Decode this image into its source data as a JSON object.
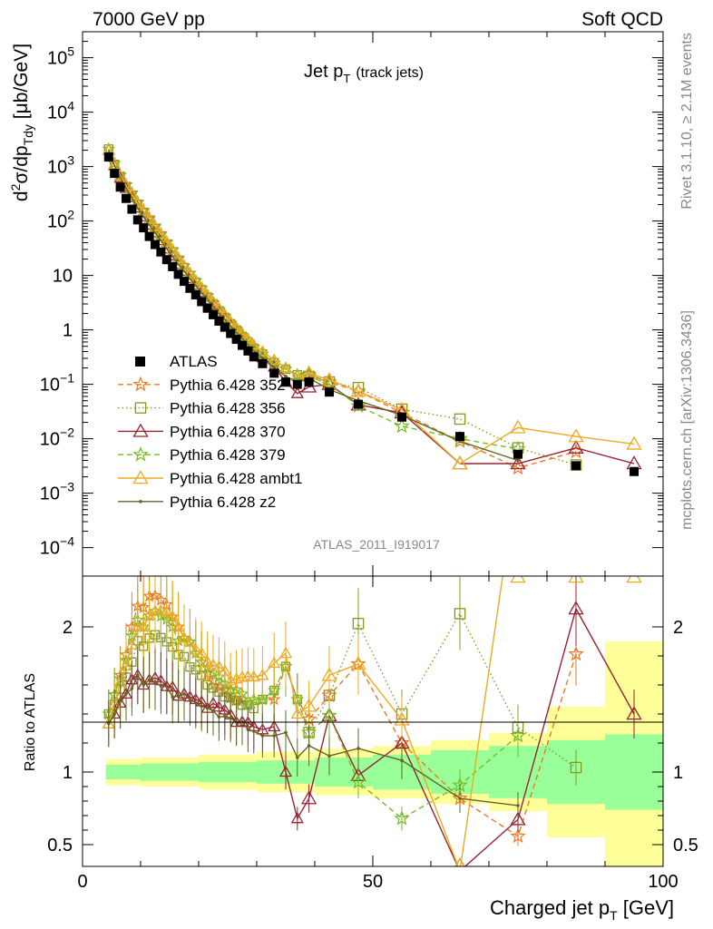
{
  "header": {
    "left": "7000 GeV pp",
    "right": "Soft QCD",
    "side_top": "Rivet 3.1.10, ≥ 2.1M events",
    "side_bottom": "mcplots.cern.ch [arXiv:1306.3436]",
    "analysis": "ATLAS_2011_I919017"
  },
  "chart_data": [
    {
      "type": "line",
      "title": "Jet p",
      "title_sub": "T",
      "title_suffix": "(track jets)",
      "ylabel": "d²σ/dp_Tdy [μb/GeV]",
      "ylabel_parts": {
        "pre": "d",
        "sup": "2",
        "mid": "σ/dp",
        "sub": "Tdy",
        "post": " [μb/GeV]"
      },
      "yscale": "log",
      "xlim": [
        0,
        100
      ],
      "ylim": [
        3e-05,
        300000.0
      ],
      "y_ticks": [
        {
          "v": 0.0001,
          "base": "10",
          "exp": "−4"
        },
        {
          "v": 0.001,
          "base": "10",
          "exp": "−3"
        },
        {
          "v": 0.01,
          "base": "10",
          "exp": "−2"
        },
        {
          "v": 0.1,
          "base": "10",
          "exp": "−1"
        },
        {
          "v": 1,
          "base": "1",
          "exp": ""
        },
        {
          "v": 10,
          "base": "10",
          "exp": ""
        },
        {
          "v": 100,
          "base": "10",
          "exp": "2"
        },
        {
          "v": 1000,
          "base": "10",
          "exp": "3"
        },
        {
          "v": 10000,
          "base": "10",
          "exp": "4"
        },
        {
          "v": 100000,
          "base": "10",
          "exp": "5"
        }
      ],
      "legend_position": "lower-left",
      "x": [
        4.5,
        5.5,
        6.5,
        7.5,
        8.5,
        9.5,
        10.5,
        11.5,
        12.5,
        13.5,
        14.5,
        15.5,
        16.5,
        17.5,
        18.5,
        19.5,
        20.5,
        21.5,
        22.5,
        23.5,
        24.5,
        25.5,
        26.5,
        27.5,
        28.5,
        29.5,
        31,
        33,
        35,
        37,
        39,
        42.5,
        47.5,
        55,
        65,
        75,
        85,
        95
      ],
      "data": {
        "name": "ATLAS",
        "values": [
          1500,
          750,
          420,
          260,
          165,
          105,
          75,
          52,
          37,
          27,
          19.5,
          14.5,
          10.5,
          7.8,
          5.8,
          4.4,
          3.3,
          2.5,
          1.9,
          1.45,
          1.12,
          0.86,
          0.67,
          0.52,
          0.41,
          0.32,
          0.24,
          0.16,
          0.11,
          0.1,
          0.11,
          0.072,
          0.043,
          0.025,
          0.011,
          0.0052,
          0.0032,
          0.0025
        ]
      },
      "series": [
        {
          "name": "Pythia 6.428 352",
          "color": "#ee7722",
          "dash": "6,4",
          "marker": "star",
          "values": [
            2100,
            1150,
            700,
            470,
            330,
            225,
            160,
            115,
            82,
            59,
            42,
            30,
            21,
            15,
            11,
            8,
            5.8,
            4.2,
            3.1,
            2.3,
            1.75,
            1.3,
            1.0,
            0.78,
            0.6,
            0.48,
            0.36,
            0.24,
            0.19,
            0.15,
            0.15,
            0.11,
            0.075,
            0.03,
            0.009,
            0.0029,
            0.0058,
            null
          ]
        },
        {
          "name": "Pythia 6.428 356",
          "color": "#889922",
          "dash": "1.5,3",
          "marker": "square",
          "values": [
            2100,
            1100,
            660,
            430,
            290,
            200,
            140,
            100,
            72,
            52,
            37,
            27,
            19,
            14,
            10,
            7.5,
            5.5,
            4.0,
            3.0,
            2.25,
            1.7,
            1.3,
            1.0,
            0.76,
            0.6,
            0.46,
            0.36,
            0.25,
            0.19,
            0.15,
            0.14,
            0.11,
            0.087,
            0.035,
            0.023,
            0.0068,
            0.0033,
            null
          ]
        },
        {
          "name": "Pythia 6.428 370",
          "color": "#992233",
          "dash": "",
          "marker": "triangle",
          "values": [
            2000,
            1050,
            620,
            400,
            270,
            175,
            120,
            85,
            61,
            44,
            31,
            23,
            16,
            12,
            8.8,
            6.6,
            4.9,
            3.6,
            2.8,
            2.1,
            1.6,
            1.2,
            0.9,
            0.7,
            0.55,
            0.42,
            0.31,
            0.21,
            0.11,
            0.068,
            0.09,
            0.1,
            0.042,
            0.03,
            0.0035,
            0.0035,
            0.0068,
            0.0035
          ]
        },
        {
          "name": "Pythia 6.428 379",
          "color": "#77bb22",
          "dash": "6,4",
          "marker": "star",
          "values": [
            2100,
            1150,
            690,
            460,
            320,
            215,
            150,
            108,
            78,
            56,
            40,
            29,
            20,
            15,
            11,
            8,
            5.8,
            4.3,
            3.2,
            2.4,
            1.8,
            1.35,
            1.05,
            0.8,
            0.6,
            0.48,
            0.36,
            0.25,
            0.19,
            0.15,
            0.14,
            0.1,
            0.04,
            0.017,
            0.01,
            0.0065,
            null,
            null
          ]
        },
        {
          "name": "Pythia 6.428 ambt1",
          "color": "#eeaa22",
          "dash": "",
          "marker": "triangle",
          "values": [
            2000,
            1100,
            680,
            450,
            310,
            210,
            150,
            108,
            78,
            57,
            41,
            30,
            21,
            15,
            11,
            8.1,
            6.0,
            4.4,
            3.3,
            2.5,
            1.9,
            1.4,
            1.1,
            0.86,
            0.68,
            0.53,
            0.4,
            0.28,
            0.2,
            0.14,
            0.16,
            0.12,
            0.075,
            0.034,
            0.0035,
            0.016,
            0.011,
            0.008
          ]
        },
        {
          "name": "Pythia 6.428 z2",
          "color": "#666622",
          "dash": "",
          "marker": "dot",
          "values": [
            2000,
            1050,
            630,
            400,
            260,
            175,
            120,
            85,
            60,
            43,
            31,
            22,
            16,
            12,
            8.7,
            6.5,
            4.8,
            3.6,
            2.7,
            2.0,
            1.55,
            1.18,
            0.9,
            0.7,
            0.53,
            0.41,
            0.3,
            0.2,
            0.14,
            0.11,
            0.13,
            0.08,
            0.05,
            0.027,
            0.009,
            0.004,
            null,
            null
          ]
        }
      ]
    },
    {
      "type": "line",
      "ylabel": "Ratio to ATLAS",
      "xlabel": "Charged jet p",
      "xlabel_sub": "T",
      "xlabel_suffix": " [GeV]",
      "xlim": [
        0,
        100
      ],
      "ylim": [
        0.35,
        2.35
      ],
      "x_ticks": [
        {
          "v": 0,
          "label": "0"
        },
        {
          "v": 50,
          "label": "50"
        },
        {
          "v": 100,
          "label": "100"
        }
      ],
      "y_ticks": [
        {
          "v": 0.5,
          "label": "0.5"
        },
        {
          "v": 1,
          "label": "1"
        },
        {
          "v": 2,
          "label": "2"
        }
      ],
      "bands": [
        {
          "x0": 4,
          "x1": 10,
          "green": 0.05,
          "yellow": 0.09
        },
        {
          "x0": 10,
          "x1": 20,
          "green": 0.06,
          "yellow": 0.1
        },
        {
          "x0": 20,
          "x1": 30,
          "green": 0.07,
          "yellow": 0.12
        },
        {
          "x0": 30,
          "x1": 40,
          "green": 0.08,
          "yellow": 0.14
        },
        {
          "x0": 40,
          "x1": 50,
          "green": 0.1,
          "yellow": 0.16
        },
        {
          "x0": 50,
          "x1": 60,
          "green": 0.12,
          "yellow": 0.18
        },
        {
          "x0": 60,
          "x1": 70,
          "green": 0.15,
          "yellow": 0.22
        },
        {
          "x0": 70,
          "x1": 80,
          "green": 0.18,
          "yellow": 0.27
        },
        {
          "x0": 80,
          "x1": 90,
          "green": 0.22,
          "yellow": 0.45
        },
        {
          "x0": 90,
          "x1": 100,
          "green": 0.26,
          "yellow": 0.9
        }
      ]
    }
  ]
}
